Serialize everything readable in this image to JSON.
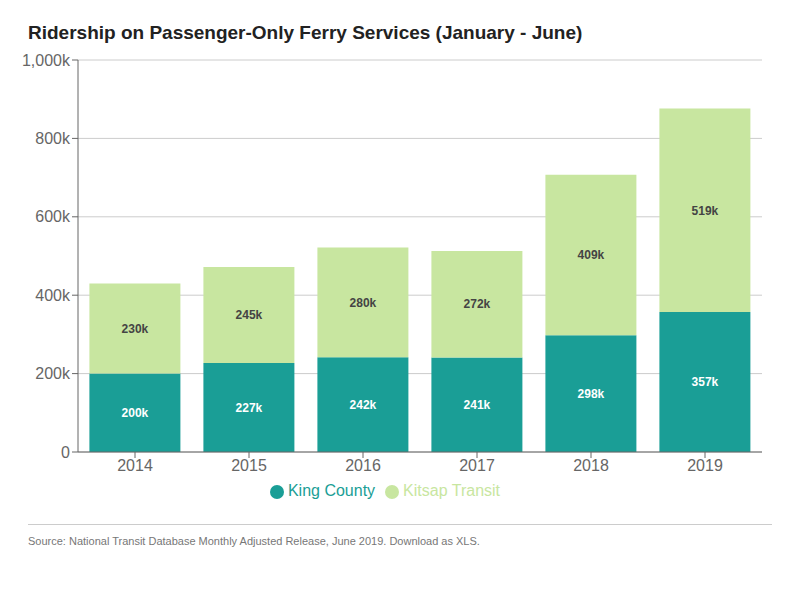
{
  "chart_data": {
    "type": "bar",
    "title": "Ridership on Passenger-Only Ferry Services (January - June)",
    "categories": [
      "2014",
      "2015",
      "2016",
      "2017",
      "2018",
      "2019"
    ],
    "series": [
      {
        "name": "King County",
        "color": "#1a9e96",
        "values": [
          200000,
          227000,
          242000,
          241000,
          298000,
          357000
        ],
        "value_labels": [
          "200k",
          "227k",
          "242k",
          "241k",
          "298k",
          "357k"
        ]
      },
      {
        "name": "Kitsap Transit",
        "color": "#c8e6a0",
        "values": [
          230000,
          245000,
          280000,
          272000,
          409000,
          519000
        ],
        "value_labels": [
          "230k",
          "245k",
          "280k",
          "272k",
          "409k",
          "519k"
        ]
      }
    ],
    "stacked": true,
    "data_labels": true,
    "ylim": [
      0,
      1000000
    ],
    "yticks": [
      0,
      {
        "value": 200000,
        "label": "200k"
      },
      {
        "value": 400000,
        "label": "400k"
      },
      {
        "value": 600000,
        "label": "600k"
      },
      {
        "value": 800000,
        "label": "800k"
      },
      {
        "value": 1000000,
        "label": "1,000k"
      }
    ],
    "grid": true,
    "legend": "bottom",
    "annotations": [
      "Source: National Transit Database Monthly Adjusted Release, June 2019. Download as XLS."
    ]
  }
}
